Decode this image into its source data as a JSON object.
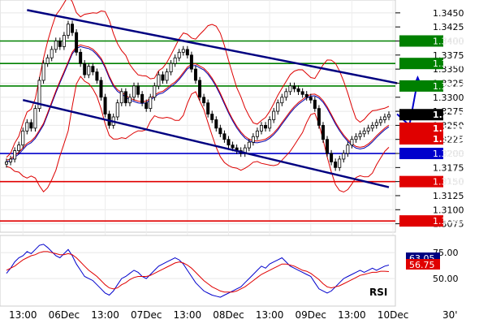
{
  "chart_data": [
    {
      "type": "candlestick",
      "instrument_note": "",
      "y_axis": {
        "ylim": [
          1.306,
          1.347
        ],
        "ticks": [
          "1.3450",
          "1.3425",
          "1.3400",
          "1.3375",
          "1.3350",
          "1.3325",
          "1.3300",
          "1.3275",
          "1.3250",
          "1.3225",
          "1.3200",
          "1.3175",
          "1.3150",
          "1.3125",
          "1.3100",
          "1.3075"
        ]
      },
      "x_axis": {
        "labels": [
          {
            "label": "13:00",
            "index": 4
          },
          {
            "label": "06Dec",
            "index": 14
          },
          {
            "label": "13:00",
            "index": 24
          },
          {
            "label": "07Dec",
            "index": 34
          },
          {
            "label": "13:00",
            "index": 44
          },
          {
            "label": "08Dec",
            "index": 54
          },
          {
            "label": "13:00",
            "index": 64
          },
          {
            "label": "09Dec",
            "index": 74
          },
          {
            "label": "13:00",
            "index": 84
          },
          {
            "label": "10Dec",
            "index": 94
          }
        ],
        "period_label": "30'"
      },
      "candles_close": [
        1.3185,
        1.319,
        1.3205,
        1.3215,
        1.324,
        1.3255,
        1.3245,
        1.328,
        1.333,
        1.336,
        1.337,
        1.3385,
        1.34,
        1.339,
        1.341,
        1.343,
        1.3415,
        1.338,
        1.336,
        1.334,
        1.3355,
        1.3345,
        1.333,
        1.33,
        1.327,
        1.325,
        1.3265,
        1.329,
        1.331,
        1.329,
        1.33,
        1.332,
        1.3305,
        1.329,
        1.328,
        1.33,
        1.332,
        1.334,
        1.333,
        1.3345,
        1.336,
        1.337,
        1.338,
        1.3385,
        1.3375,
        1.335,
        1.333,
        1.33,
        1.329,
        1.327,
        1.326,
        1.3245,
        1.3235,
        1.3225,
        1.3215,
        1.321,
        1.3205,
        1.32,
        1.321,
        1.322,
        1.323,
        1.324,
        1.325,
        1.3245,
        1.326,
        1.3275,
        1.329,
        1.33,
        1.331,
        1.332,
        1.3315,
        1.331,
        1.3305,
        1.33,
        1.3295,
        1.328,
        1.325,
        1.3225,
        1.32,
        1.3185,
        1.3175,
        1.319,
        1.32,
        1.3215,
        1.3225,
        1.323,
        1.3235,
        1.324,
        1.3245,
        1.325,
        1.3255,
        1.326,
        1.3265,
        1.3269
      ],
      "horizontal_levels": [
        {
          "label": "1.3400",
          "value": 1.34,
          "color": "#008000"
        },
        {
          "label": "1.3360",
          "value": 1.336,
          "color": "#008000"
        },
        {
          "label": "1.3320",
          "value": 1.332,
          "color": "#008000"
        },
        {
          "label": "1.3200",
          "value": 1.32,
          "color": "#0000cc"
        },
        {
          "label": "1.3150",
          "value": 1.315,
          "color": "#e00000"
        },
        {
          "label": "1.3080",
          "value": 1.308,
          "color": "#e00000"
        }
      ],
      "price_tags": [
        {
          "label": "1.3269",
          "value": 1.3269,
          "color": "#000000"
        },
        {
          "label": "1.3245",
          "value": 1.3245,
          "color": "#e00000"
        },
        {
          "label": "1.3226",
          "value": 1.3226,
          "color": "#e00000"
        }
      ],
      "channel_lines": [
        {
          "from": [
            5,
            1.3455
          ],
          "to": [
            95,
            1.3325
          ],
          "color": "#000080"
        },
        {
          "from": [
            4,
            1.3295
          ],
          "to": [
            93,
            1.314
          ],
          "color": "#000080"
        }
      ],
      "projection": {
        "points": [
          [
            95,
            1.327
          ],
          [
            98,
            1.325
          ],
          [
            100,
            1.333
          ]
        ],
        "color": "#0000cc"
      }
    },
    {
      "type": "line",
      "title": "RSI",
      "ylim": [
        25,
        90
      ],
      "ticks": [
        "75.00",
        "50.00"
      ],
      "series": [
        {
          "color": "#0000cc",
          "values": [
            55,
            60,
            66,
            70,
            72,
            76,
            74,
            78,
            82,
            83,
            80,
            76,
            72,
            70,
            74,
            78,
            72,
            64,
            58,
            52,
            50,
            48,
            44,
            40,
            36,
            34,
            38,
            44,
            50,
            52,
            55,
            58,
            56,
            52,
            50,
            54,
            58,
            62,
            64,
            66,
            68,
            70,
            68,
            64,
            58,
            52,
            46,
            42,
            38,
            36,
            34,
            33,
            32,
            34,
            36,
            38,
            40,
            42,
            46,
            50,
            54,
            58,
            62,
            60,
            64,
            66,
            68,
            70,
            66,
            62,
            60,
            58,
            56,
            54,
            52,
            46,
            40,
            38,
            36,
            38,
            42,
            46,
            50,
            52,
            54,
            56,
            58,
            56,
            58,
            60,
            58,
            60,
            62,
            63
          ]
        },
        {
          "color": "#e00000",
          "values": [
            58,
            60,
            62,
            65,
            68,
            70,
            72,
            73,
            75,
            76,
            76,
            75,
            74,
            73,
            73,
            74,
            73,
            70,
            66,
            62,
            58,
            55,
            52,
            48,
            44,
            41,
            40,
            41,
            44,
            46,
            49,
            51,
            52,
            52,
            52,
            53,
            55,
            57,
            59,
            61,
            63,
            65,
            66,
            65,
            63,
            60,
            56,
            52,
            48,
            45,
            42,
            40,
            38,
            37,
            37,
            37,
            38,
            40,
            42,
            45,
            48,
            51,
            54,
            56,
            58,
            60,
            62,
            64,
            64,
            63,
            62,
            60,
            58,
            57,
            55,
            52,
            49,
            45,
            42,
            41,
            42,
            43,
            45,
            47,
            49,
            51,
            53,
            54,
            55,
            56,
            56,
            57,
            57,
            56.75
          ]
        }
      ],
      "value_tags": [
        {
          "label": "63.05",
          "color": "#000080"
        },
        {
          "label": "56.75",
          "color": "#e00000"
        }
      ]
    }
  ]
}
